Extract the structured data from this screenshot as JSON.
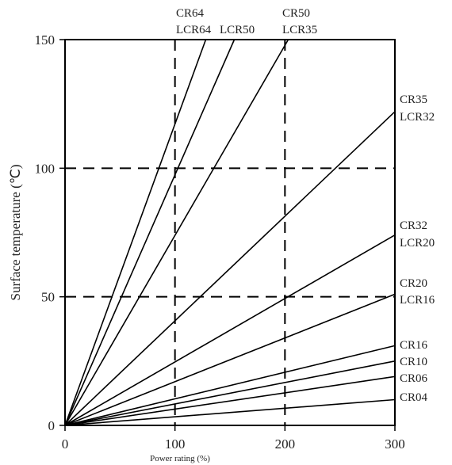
{
  "chart_data": {
    "type": "line",
    "title": "",
    "xlabel": "Power rating (%)",
    "ylabel": "Surface temperature (℃)",
    "xlim": [
      0,
      300
    ],
    "ylim": [
      0,
      150
    ],
    "xticks": [
      "0",
      "100",
      "200",
      "300"
    ],
    "yticks": [
      "0",
      "50",
      "100",
      "150"
    ],
    "grid": {
      "x": [
        100,
        200
      ],
      "y": [
        50,
        100
      ],
      "style": "dashed"
    },
    "series": [
      {
        "name": "CR64",
        "x": [
          0,
          128
        ],
        "y": [
          0,
          150
        ]
      },
      {
        "name": "LCR64",
        "x": [
          0,
          154
        ],
        "y": [
          0,
          150
        ]
      },
      {
        "name": "CR50 LCR35",
        "x": [
          0,
          203
        ],
        "y": [
          0,
          150
        ]
      },
      {
        "name": "CR35 LCR32",
        "x": [
          0,
          300
        ],
        "y": [
          0,
          122
        ]
      },
      {
        "name": "CR32 LCR20",
        "x": [
          0,
          300
        ],
        "y": [
          0,
          74
        ]
      },
      {
        "name": "CR20 LCR16",
        "x": [
          0,
          300
        ],
        "y": [
          0,
          51
        ]
      },
      {
        "name": "CR16",
        "x": [
          0,
          300
        ],
        "y": [
          0,
          31
        ]
      },
      {
        "name": "CR10",
        "x": [
          0,
          300
        ],
        "y": [
          0,
          25
        ]
      },
      {
        "name": "CR06",
        "x": [
          0,
          300
        ],
        "y": [
          0,
          19
        ]
      },
      {
        "name": "CR04",
        "x": [
          0,
          300
        ],
        "y": [
          0,
          10
        ]
      }
    ],
    "labels": [
      {
        "text": "CR64",
        "attach": "top"
      },
      {
        "text": "LCR64",
        "attach": "top"
      },
      {
        "text": "LCR50",
        "attach": "top"
      },
      {
        "text": "CR50",
        "attach": "top"
      },
      {
        "text": "LCR35",
        "attach": "top"
      },
      {
        "text": "CR35",
        "attach": "right"
      },
      {
        "text": "LCR32",
        "attach": "right"
      },
      {
        "text": "CR32",
        "attach": "right"
      },
      {
        "text": "LCR20",
        "attach": "right"
      },
      {
        "text": "CR20",
        "attach": "right"
      },
      {
        "text": "LCR16",
        "attach": "right"
      },
      {
        "text": "CR16",
        "attach": "right"
      },
      {
        "text": "CR10",
        "attach": "right"
      },
      {
        "text": "CR06",
        "attach": "right"
      },
      {
        "text": "CR04",
        "attach": "right"
      }
    ]
  }
}
